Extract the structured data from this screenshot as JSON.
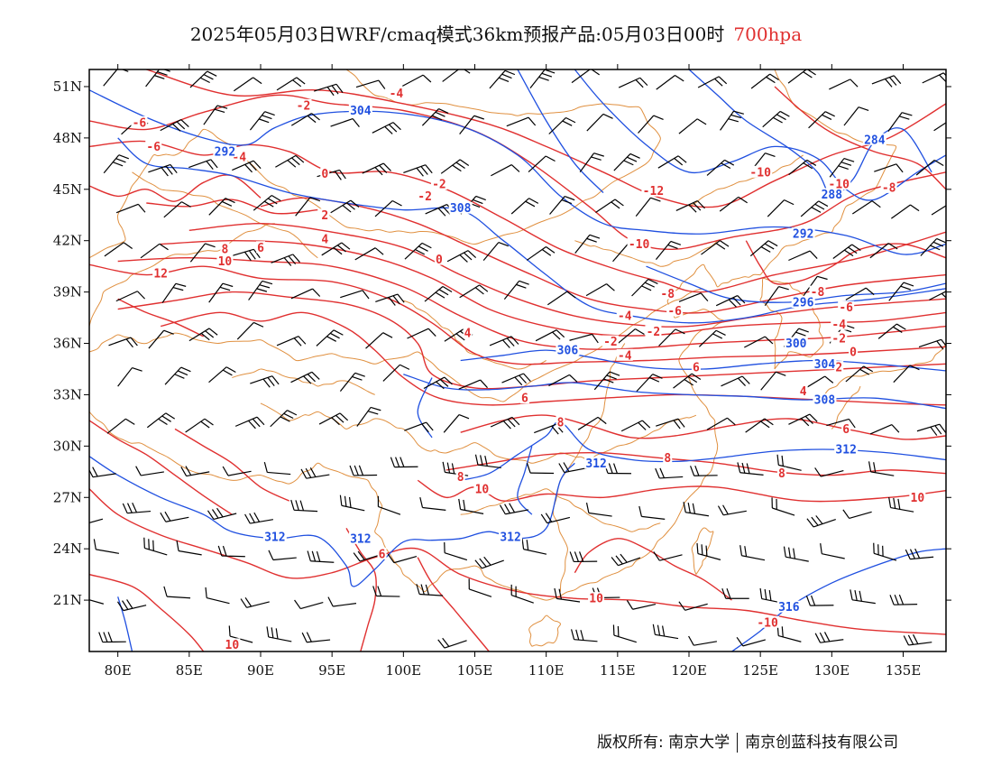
{
  "title": {
    "main": "2025年05月03日WRF/cmaq模式36km预报产品:05月03日00时",
    "level": "700hpa"
  },
  "axes": {
    "lat_labels": [
      "51N",
      "48N",
      "45N",
      "42N",
      "39N",
      "36N",
      "33N",
      "30N",
      "27N",
      "24N",
      "21N"
    ],
    "lat_values": [
      51,
      48,
      45,
      42,
      39,
      36,
      33,
      30,
      27,
      24,
      21
    ],
    "lon_labels": [
      "80E",
      "85E",
      "90E",
      "95E",
      "100E",
      "105E",
      "110E",
      "115E",
      "120E",
      "125E",
      "130E",
      "135E"
    ],
    "lon_values": [
      80,
      85,
      90,
      95,
      100,
      105,
      110,
      115,
      120,
      125,
      130,
      135
    ],
    "lon_range": [
      78,
      138
    ],
    "lat_range": [
      18,
      52
    ]
  },
  "colors": {
    "temperature": "#e03030",
    "height": "#2050e0",
    "border": "#e09040",
    "wind": "#000000"
  },
  "height_contours": [
    {
      "label": "304",
      "lon": 97.0,
      "lat": 49.6
    },
    {
      "label": "308",
      "lon": 104.0,
      "lat": 43.9
    },
    {
      "label": "292",
      "lon": 128.0,
      "lat": 42.4
    },
    {
      "label": "296",
      "lon": 128.0,
      "lat": 38.4
    },
    {
      "label": "300",
      "lon": 127.5,
      "lat": 36.0
    },
    {
      "label": "304",
      "lon": 129.5,
      "lat": 34.8
    },
    {
      "label": "306",
      "lon": 111.5,
      "lat": 35.6
    },
    {
      "label": "308",
      "lon": 129.5,
      "lat": 32.7
    },
    {
      "label": "312",
      "lon": 131.0,
      "lat": 29.8
    },
    {
      "label": "312",
      "lon": 113.5,
      "lat": 29.0
    },
    {
      "label": "312",
      "lon": 91.0,
      "lat": 24.7
    },
    {
      "label": "312",
      "lon": 97.0,
      "lat": 24.6
    },
    {
      "label": "312",
      "lon": 107.5,
      "lat": 24.7
    },
    {
      "label": "316",
      "lon": 127.0,
      "lat": 20.6
    },
    {
      "label": "284",
      "lon": 133.0,
      "lat": 47.9
    },
    {
      "label": "292",
      "lon": 87.5,
      "lat": 47.2
    },
    {
      "label": "288",
      "lon": 130.0,
      "lat": 44.7
    }
  ],
  "temperature_contours": [
    {
      "label": "-4",
      "lon": 99.5,
      "lat": 50.6
    },
    {
      "label": "-2",
      "lon": 93.0,
      "lat": 49.9
    },
    {
      "label": "-6",
      "lon": 81.5,
      "lat": 48.9
    },
    {
      "label": "-6",
      "lon": 82.5,
      "lat": 47.5
    },
    {
      "label": "-4",
      "lon": 88.5,
      "lat": 46.9
    },
    {
      "label": "0",
      "lon": 94.5,
      "lat": 45.9
    },
    {
      "label": "-2",
      "lon": 102.5,
      "lat": 45.3
    },
    {
      "label": "-2",
      "lon": 101.5,
      "lat": 44.6
    },
    {
      "label": "-12",
      "lon": 117.5,
      "lat": 44.9
    },
    {
      "label": "-10",
      "lon": 125.0,
      "lat": 46.0
    },
    {
      "label": "-10",
      "lon": 130.5,
      "lat": 45.3
    },
    {
      "label": "-8",
      "lon": 134.0,
      "lat": 45.1
    },
    {
      "label": "2",
      "lon": 94.5,
      "lat": 43.5
    },
    {
      "label": "4",
      "lon": 94.5,
      "lat": 42.1
    },
    {
      "label": "8",
      "lon": 87.5,
      "lat": 41.5
    },
    {
      "label": "6",
      "lon": 90.0,
      "lat": 41.6
    },
    {
      "label": "10",
      "lon": 87.5,
      "lat": 40.8
    },
    {
      "label": "12",
      "lon": 83.0,
      "lat": 40.1
    },
    {
      "label": "0",
      "lon": 102.5,
      "lat": 40.9
    },
    {
      "label": "-10",
      "lon": 116.5,
      "lat": 41.8
    },
    {
      "label": "-8",
      "lon": 118.5,
      "lat": 38.9
    },
    {
      "label": "-6",
      "lon": 119.0,
      "lat": 37.9
    },
    {
      "label": "-4",
      "lon": 115.5,
      "lat": 37.6
    },
    {
      "label": "-2",
      "lon": 117.5,
      "lat": 36.7
    },
    {
      "label": "-2",
      "lon": 114.5,
      "lat": 36.1
    },
    {
      "label": "-4",
      "lon": 115.5,
      "lat": 35.3
    },
    {
      "label": "4",
      "lon": 104.5,
      "lat": 36.6
    },
    {
      "label": "6",
      "lon": 108.5,
      "lat": 32.8
    },
    {
      "label": "6",
      "lon": 120.5,
      "lat": 34.6
    },
    {
      "label": "8",
      "lon": 111.0,
      "lat": 31.4
    },
    {
      "label": "-8",
      "lon": 129.0,
      "lat": 39.0
    },
    {
      "label": "-6",
      "lon": 131.0,
      "lat": 38.1
    },
    {
      "label": "-4",
      "lon": 130.5,
      "lat": 37.1
    },
    {
      "label": "-2",
      "lon": 130.5,
      "lat": 36.3
    },
    {
      "label": "0",
      "lon": 131.5,
      "lat": 35.5
    },
    {
      "label": "2",
      "lon": 130.5,
      "lat": 34.6
    },
    {
      "label": "4",
      "lon": 128.0,
      "lat": 33.2
    },
    {
      "label": "6",
      "lon": 131.0,
      "lat": 31.0
    },
    {
      "label": "8",
      "lon": 118.5,
      "lat": 29.3
    },
    {
      "label": "8",
      "lon": 126.5,
      "lat": 28.4
    },
    {
      "label": "8",
      "lon": 104.0,
      "lat": 28.2
    },
    {
      "label": "10",
      "lon": 105.5,
      "lat": 27.5
    },
    {
      "label": "10",
      "lon": 136.0,
      "lat": 27.0
    },
    {
      "label": "6",
      "lon": 98.5,
      "lat": 23.7
    },
    {
      "label": "10",
      "lon": 113.5,
      "lat": 21.1
    },
    {
      "label": "10",
      "lon": 88.0,
      "lat": 18.4
    },
    {
      "label": "-10",
      "lon": 125.5,
      "lat": 19.7
    }
  ],
  "footer": {
    "left": "版权所有: 南京大学",
    "right": "南京创蓝科技有限公司"
  }
}
